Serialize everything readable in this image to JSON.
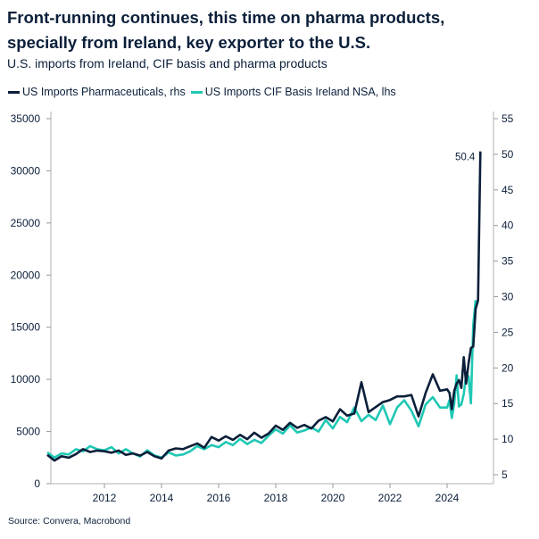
{
  "title_line1": "Front-running continues, this time on pharma products,",
  "title_line2": "specially from Ireland, key exporter to the U.S.",
  "subtitle": "U.S. imports from Ireland, CIF basis and pharma products",
  "source": "Source: Convera, Macrobond",
  "colors": {
    "pharma": "#0b1f3a",
    "cif": "#1fc8b4",
    "axis": "#cccccc"
  },
  "chart_data": {
    "type": "line",
    "title": "Front-running continues, this time on pharma products, specially from Ireland, key exporter to the U.S.",
    "subtitle": "U.S. imports from Ireland, CIF basis and pharma products",
    "legend_placement": "top-left",
    "grid": false,
    "x_ticks": [
      "2012",
      "2014",
      "2016",
      "2018",
      "2020",
      "2022",
      "2024"
    ],
    "xlim": [
      "2010-01",
      "2025-06"
    ],
    "y_left": {
      "ticks": [
        0,
        5000,
        10000,
        15000,
        20000,
        25000,
        30000,
        35000
      ],
      "lim": [
        0,
        35000
      ]
    },
    "y_right": {
      "ticks": [
        5,
        10,
        15,
        20,
        25,
        30,
        35,
        40,
        45,
        50,
        55
      ],
      "lim": [
        3.75,
        55
      ]
    },
    "annotation": "50.4",
    "dates": [
      "2010-01",
      "2010-04",
      "2010-07",
      "2010-10",
      "2011-01",
      "2011-04",
      "2011-07",
      "2011-10",
      "2012-01",
      "2012-04",
      "2012-07",
      "2012-10",
      "2013-01",
      "2013-04",
      "2013-07",
      "2013-10",
      "2014-01",
      "2014-04",
      "2014-07",
      "2014-10",
      "2015-01",
      "2015-04",
      "2015-07",
      "2015-10",
      "2016-01",
      "2016-04",
      "2016-07",
      "2016-10",
      "2017-01",
      "2017-04",
      "2017-07",
      "2017-10",
      "2018-01",
      "2018-04",
      "2018-07",
      "2018-10",
      "2019-01",
      "2019-04",
      "2019-07",
      "2019-10",
      "2020-01",
      "2020-04",
      "2020-07",
      "2020-10",
      "2021-01",
      "2021-04",
      "2021-07",
      "2021-10",
      "2022-01",
      "2022-04",
      "2022-07",
      "2022-10",
      "2023-01",
      "2023-04",
      "2023-07",
      "2023-10",
      "2024-01",
      "2024-02",
      "2024-03",
      "2024-04",
      "2024-05",
      "2024-06",
      "2024-07",
      "2024-08",
      "2024-09",
      "2024-10",
      "2024-11",
      "2024-12",
      "2025-01",
      "2025-02",
      "2025-03"
    ],
    "series": [
      {
        "name": "US Imports Pharmaceuticals, rhs",
        "axis": "right",
        "values": [
          7.8,
          7.0,
          7.6,
          7.4,
          7.9,
          8.6,
          8.2,
          8.4,
          8.3,
          8.1,
          8.4,
          7.8,
          8.0,
          7.7,
          8.2,
          7.6,
          7.3,
          8.4,
          8.7,
          8.6,
          9.0,
          9.4,
          8.8,
          10.3,
          9.8,
          10.4,
          9.9,
          10.6,
          10.0,
          10.9,
          10.2,
          10.8,
          11.9,
          11.3,
          12.3,
          11.6,
          12.0,
          11.5,
          12.6,
          13.1,
          12.5,
          14.2,
          13.3,
          13.6,
          18.0,
          13.8,
          14.5,
          15.2,
          15.5,
          16.0,
          16.0,
          16.2,
          13.2,
          16.5,
          19.1,
          16.8,
          17.0,
          16.5,
          14.2,
          16.8,
          17.8,
          18.3,
          17.2,
          21.5,
          17.8,
          20.6,
          22.8,
          23.0,
          28.3,
          29.5,
          50.4
        ]
      },
      {
        "name": "US Imports CIF Basis Ireland NSA, lhs",
        "axis": "left",
        "values": [
          3000,
          2500,
          2900,
          2800,
          3300,
          3100,
          3600,
          3300,
          3200,
          3500,
          2900,
          3300,
          2900,
          2600,
          3200,
          2700,
          2500,
          3000,
          2700,
          2800,
          3100,
          3600,
          3300,
          3700,
          3500,
          4000,
          3700,
          4300,
          3800,
          4200,
          3900,
          4600,
          5200,
          4800,
          5600,
          4900,
          5100,
          5400,
          5000,
          6100,
          5300,
          6400,
          5900,
          7300,
          6000,
          6600,
          6100,
          7500,
          5700,
          7300,
          8000,
          7000,
          5500,
          7600,
          8300,
          7300,
          7300,
          8000,
          6300,
          7700,
          10400,
          7400,
          7600,
          8600,
          10400,
          10300,
          7700,
          15200,
          17600,
          null,
          null
        ]
      }
    ]
  }
}
